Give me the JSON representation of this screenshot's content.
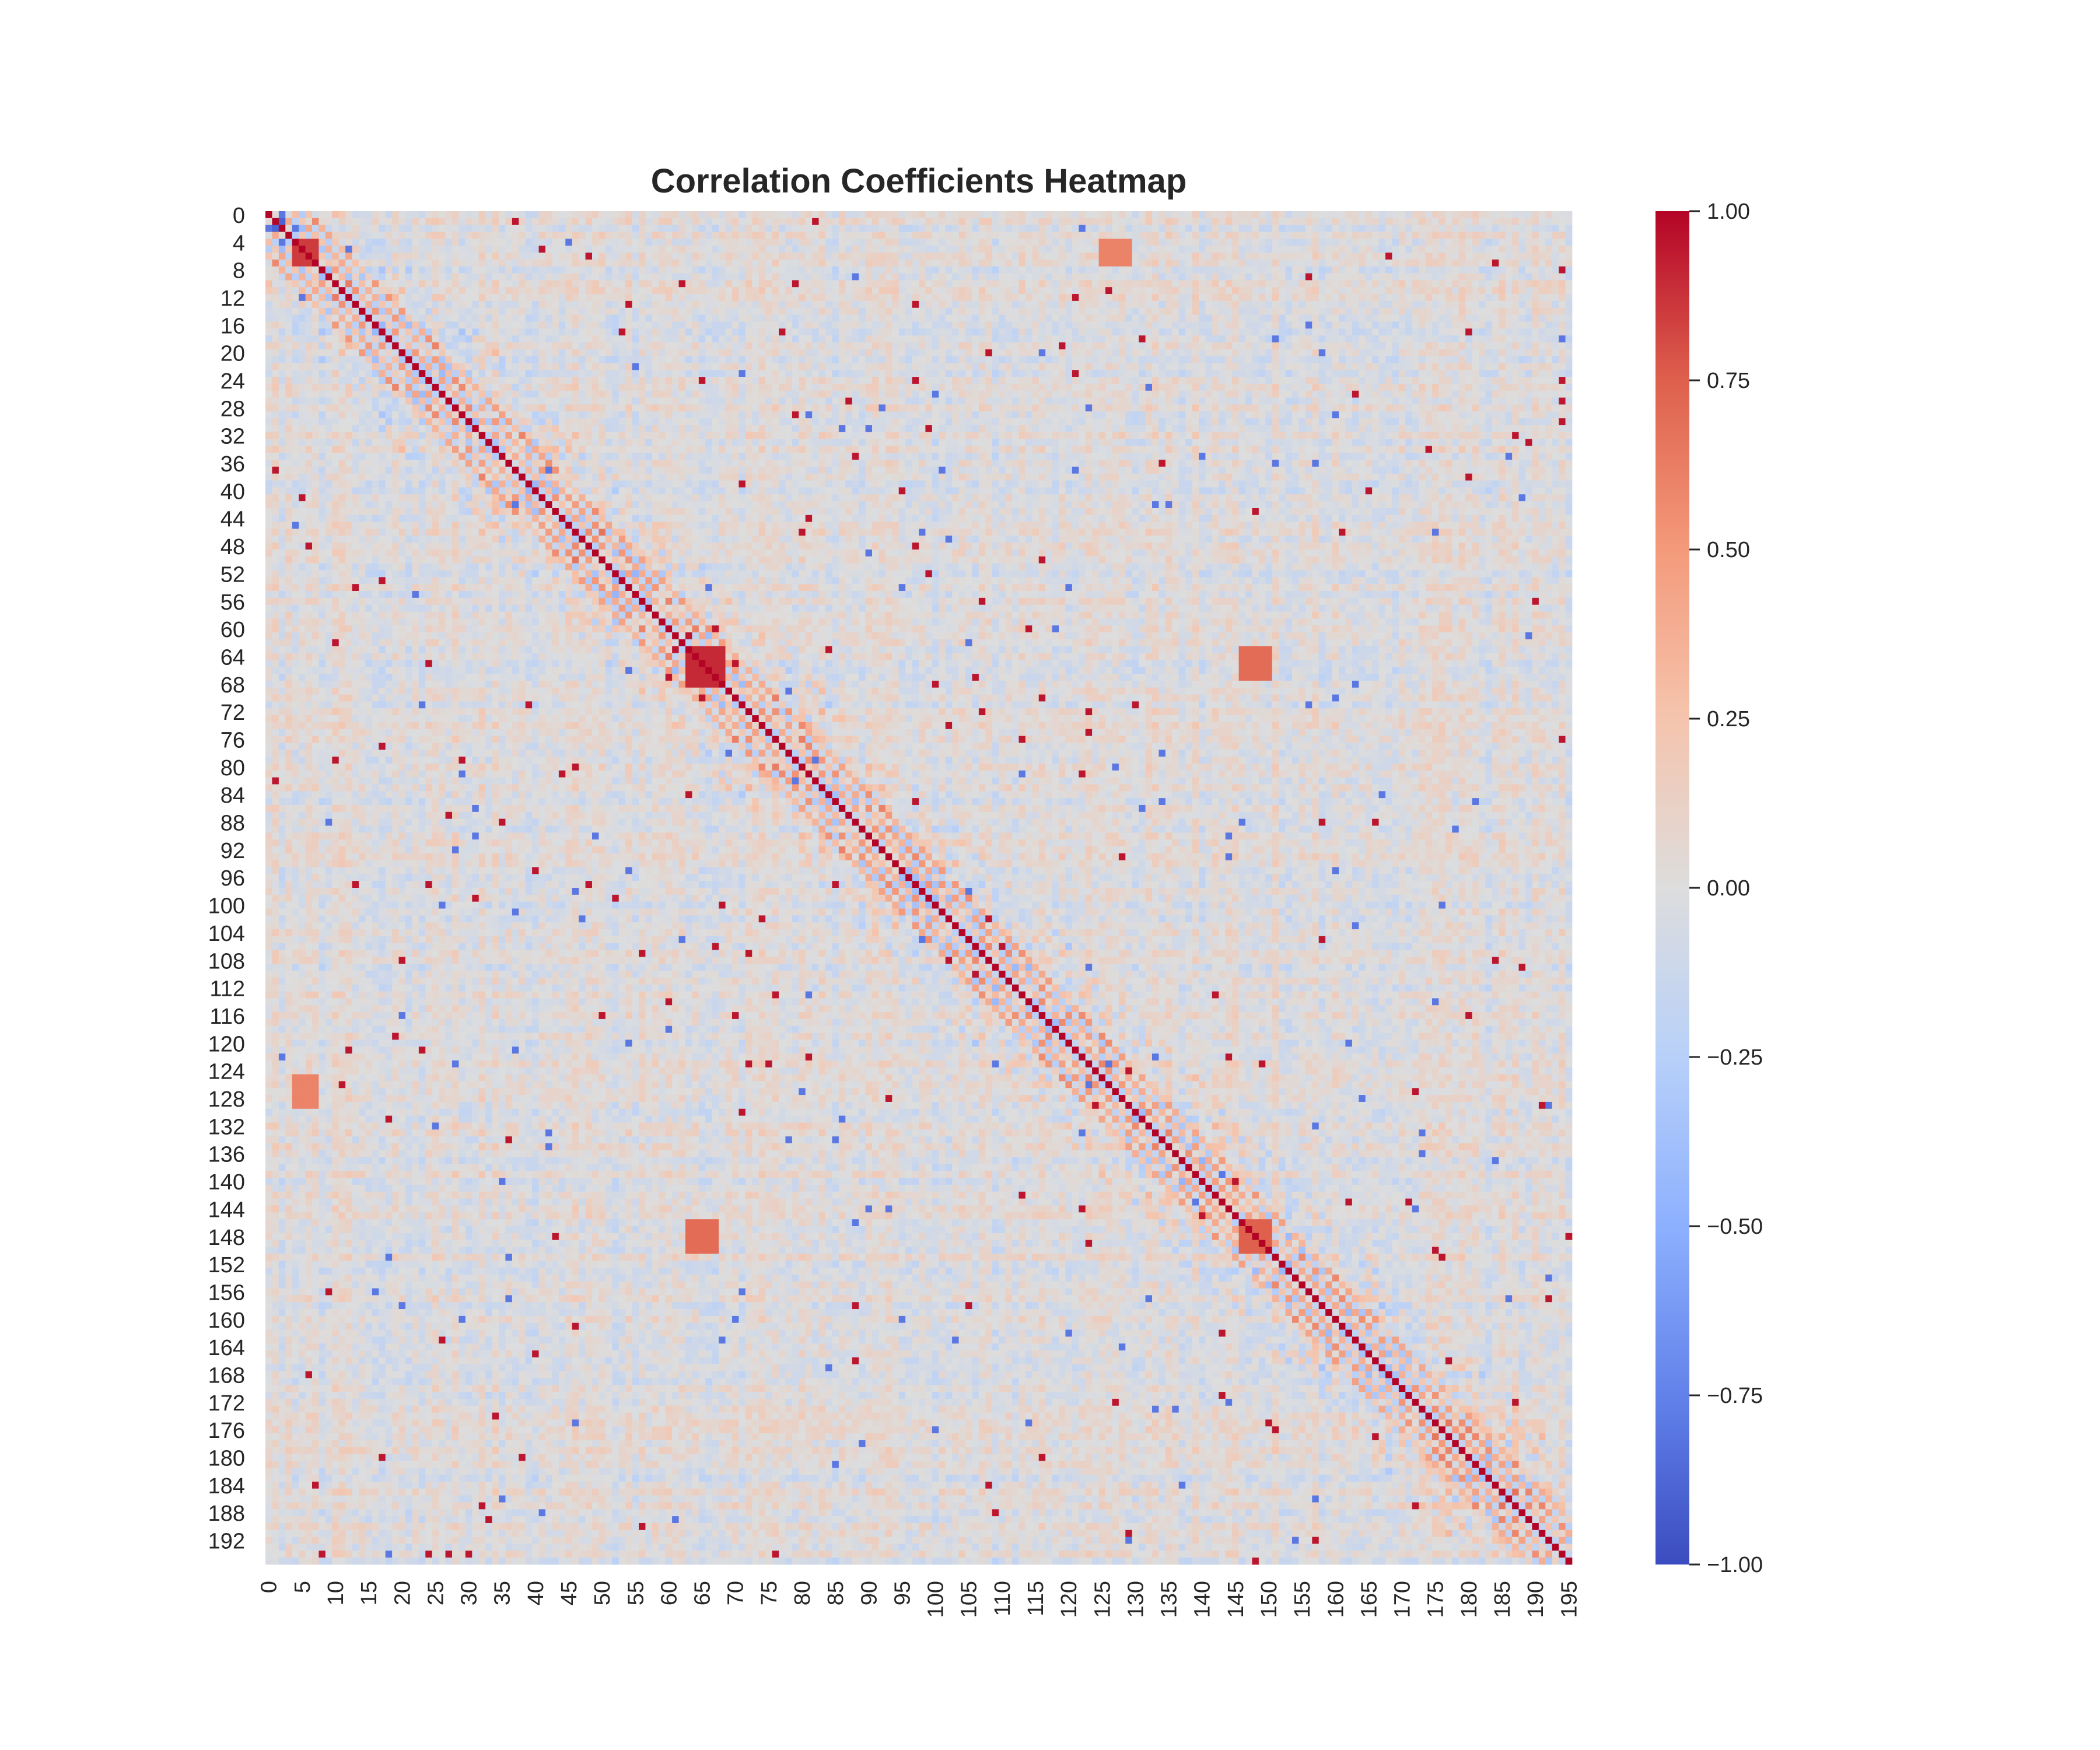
{
  "chart_data": {
    "type": "heatmap",
    "title": "Correlation Coefficients Heatmap",
    "xlabel": "",
    "ylabel": "",
    "matrix_size": 196,
    "x_tick_labels": [
      "0",
      "5",
      "10",
      "15",
      "20",
      "25",
      "30",
      "35",
      "40",
      "45",
      "50",
      "55",
      "60",
      "65",
      "70",
      "75",
      "80",
      "85",
      "90",
      "95",
      "100",
      "105",
      "110",
      "115",
      "120",
      "125",
      "130",
      "135",
      "140",
      "145",
      "150",
      "155",
      "160",
      "165",
      "170",
      "175",
      "180",
      "185",
      "190",
      "195"
    ],
    "y_tick_labels": [
      "0",
      "4",
      "8",
      "12",
      "16",
      "20",
      "24",
      "28",
      "32",
      "36",
      "40",
      "44",
      "48",
      "52",
      "56",
      "60",
      "64",
      "68",
      "72",
      "76",
      "80",
      "84",
      "88",
      "92",
      "96",
      "100",
      "104",
      "108",
      "112",
      "116",
      "120",
      "124",
      "128",
      "132",
      "136",
      "140",
      "144",
      "148",
      "152",
      "156",
      "160",
      "164",
      "168",
      "172",
      "176",
      "180",
      "184",
      "188",
      "192"
    ],
    "colormap": "coolwarm",
    "vmin": -1.0,
    "vmax": 1.0,
    "colorbar_ticks": [
      "1.00",
      "0.75",
      "0.50",
      "0.25",
      "0.00",
      "−0.25",
      "−0.50",
      "−0.75",
      "−1.00"
    ],
    "colorbar_values": [
      1.0,
      0.75,
      0.5,
      0.25,
      0.0,
      -0.25,
      -0.5,
      -0.75,
      -1.0
    ],
    "diagonal_value": 1.0,
    "blocks": [
      {
        "rows": [
          1,
          2
        ],
        "cols": [
          1,
          2
        ],
        "value": -0.9
      },
      {
        "rows": [
          4,
          7
        ],
        "cols": [
          4,
          7
        ],
        "value": 0.85
      },
      {
        "rows": [
          63,
          68
        ],
        "cols": [
          63,
          68
        ],
        "value": 0.9
      },
      {
        "rows": [
          146,
          150
        ],
        "cols": [
          146,
          150
        ],
        "value": 0.75
      },
      {
        "rows": [
          146,
          150
        ],
        "cols": [
          63,
          67
        ],
        "value": 0.7
      },
      {
        "rows": [
          63,
          67
        ],
        "cols": [
          146,
          150
        ],
        "value": 0.7
      },
      {
        "rows": [
          125,
          129
        ],
        "cols": [
          4,
          7
        ],
        "value": 0.6
      },
      {
        "rows": [
          4,
          7
        ],
        "cols": [
          125,
          129
        ],
        "value": 0.6
      }
    ],
    "colors": {
      "low": "#3b4cc0",
      "mid": "#dddddd",
      "high": "#b40426"
    }
  }
}
